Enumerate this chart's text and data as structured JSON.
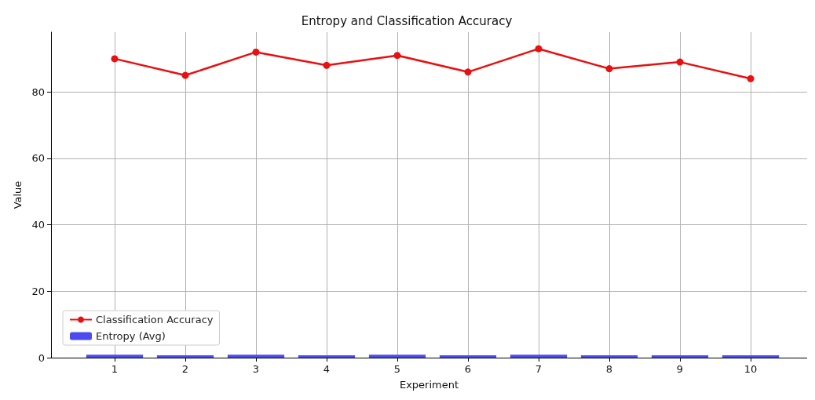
{
  "chart_data": {
    "type": "bar",
    "title": "Entropy and Classification Accuracy",
    "xlabel": "Experiment",
    "ylabel": "Value",
    "x": [
      1,
      2,
      3,
      4,
      5,
      6,
      7,
      8,
      9,
      10
    ],
    "xlim": [
      0.1,
      10.8
    ],
    "xticks": [
      1,
      2,
      3,
      4,
      5,
      6,
      7,
      8,
      9,
      10
    ],
    "ylim": [
      0,
      98
    ],
    "yticks": [
      0,
      20,
      40,
      60,
      80
    ],
    "series": [
      {
        "name": "Classification Accuracy",
        "type": "line",
        "color": "#e81010",
        "marker": "circle",
        "line_style": "solid",
        "values": [
          90,
          85,
          92,
          88,
          91,
          86,
          93,
          87,
          89,
          84
        ]
      },
      {
        "name": "Entropy (Avg)",
        "color": "#4b4bf2",
        "values": [
          0.9,
          0.7,
          0.9,
          0.7,
          0.9,
          0.7,
          0.9,
          0.7,
          0.7,
          0.7
        ]
      }
    ],
    "grid": true,
    "legend": "bottom left"
  }
}
